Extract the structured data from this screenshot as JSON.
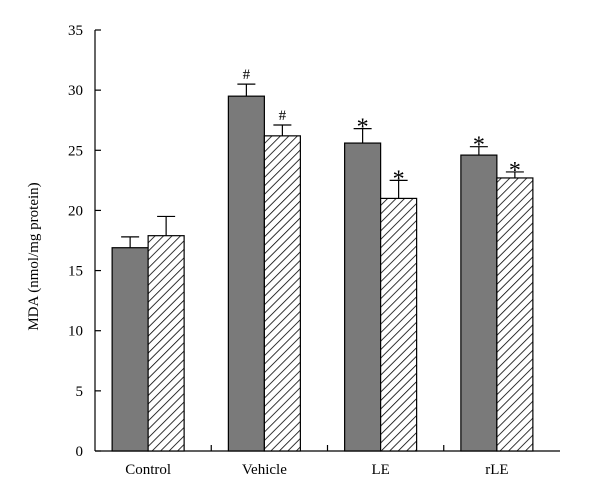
{
  "chart_data": {
    "type": "bar",
    "categories": [
      "Control",
      "Vehicle",
      "LE",
      "rLE"
    ],
    "series": [
      {
        "fill": "#7a7a7a",
        "pattern": "solid",
        "values": [
          16.9,
          29.5,
          25.6,
          24.6
        ],
        "errors": [
          0.9,
          1.0,
          1.2,
          0.7
        ],
        "annotations": [
          "",
          "#",
          "*",
          "*"
        ]
      },
      {
        "fill": "#ffffff",
        "pattern": "diagonal-hatch",
        "values": [
          17.9,
          26.2,
          21.0,
          22.7
        ],
        "errors": [
          1.6,
          0.9,
          1.5,
          0.5
        ],
        "annotations": [
          "",
          "#",
          "*",
          "*"
        ]
      }
    ],
    "title": "",
    "xlabel": "",
    "ylabel": "MDA (nmol/mg protein)",
    "ylim": [
      0,
      35
    ],
    "yticks": [
      0,
      5,
      10,
      15,
      20,
      25,
      30,
      35
    ],
    "grid": false,
    "legend": "none"
  }
}
